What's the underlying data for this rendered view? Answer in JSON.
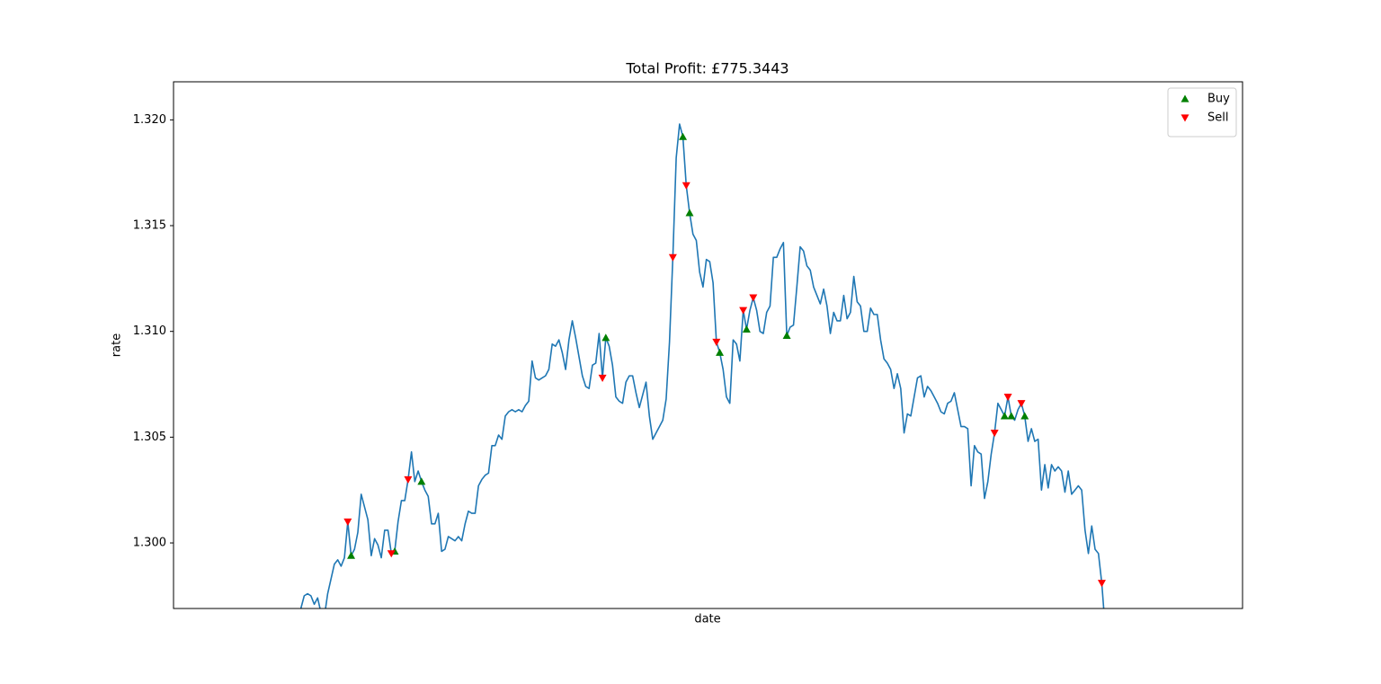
{
  "chart_data": {
    "type": "line",
    "title": "Total Profit: £775.3443",
    "x_label": "date",
    "y_label": "rate",
    "xlim": [
      -38,
      281
    ],
    "ylim": [
      1.2969,
      1.3218
    ],
    "yticks": [
      {
        "value": 1.3,
        "label": "1.300"
      },
      1.305,
      {
        "value": 1.31,
        "label": "1.310"
      },
      1.315,
      {
        "value": 1.32,
        "label": "1.320"
      }
    ],
    "legend": "upper right",
    "series": [
      {
        "type": "line",
        "color": "#1f77b4",
        "values": [
          1.2969,
          1.2975,
          1.2976,
          1.2975,
          1.2971,
          1.2974,
          1.2967,
          1.2965,
          1.2976,
          1.2983,
          1.299,
          1.2992,
          1.2989,
          1.2993,
          1.301,
          1.2994,
          1.2997,
          1.3005,
          1.3023,
          1.3017,
          1.3011,
          1.2994,
          1.3002,
          1.2999,
          1.2993,
          1.3006,
          1.3006,
          1.2995,
          1.2996,
          1.301,
          1.302,
          1.302,
          1.303,
          1.3043,
          1.3029,
          1.3034,
          1.3029,
          1.3025,
          1.3022,
          1.3009,
          1.3009,
          1.3014,
          1.2996,
          1.2997,
          1.3003,
          1.3002,
          1.3001,
          1.3003,
          1.3001,
          1.3009,
          1.3015,
          1.3014,
          1.3014,
          1.3027,
          1.303,
          1.3032,
          1.3033,
          1.3046,
          1.3046,
          1.3051,
          1.3049,
          1.306,
          1.3062,
          1.3063,
          1.3062,
          1.3063,
          1.3062,
          1.3065,
          1.3067,
          1.3086,
          1.3078,
          1.3077,
          1.3078,
          1.3079,
          1.3082,
          1.3094,
          1.3093,
          1.3096,
          1.309,
          1.3082,
          1.3096,
          1.3105,
          1.3097,
          1.3088,
          1.3079,
          1.3074,
          1.3073,
          1.3084,
          1.3085,
          1.3099,
          1.3078,
          1.3097,
          1.3093,
          1.3084,
          1.3069,
          1.3067,
          1.3066,
          1.3076,
          1.3079,
          1.3079,
          1.3071,
          1.3064,
          1.307,
          1.3076,
          1.306,
          1.3049,
          1.3052,
          1.3055,
          1.3058,
          1.3068,
          1.3095,
          1.3135,
          1.3182,
          1.3198,
          1.3192,
          1.3169,
          1.3156,
          1.3146,
          1.3143,
          1.3128,
          1.3121,
          1.3134,
          1.3133,
          1.3123,
          1.3095,
          1.309,
          1.3082,
          1.3069,
          1.3066,
          1.3096,
          1.3094,
          1.3086,
          1.311,
          1.3101,
          1.311,
          1.3116,
          1.311,
          1.31,
          1.3099,
          1.3109,
          1.3112,
          1.3135,
          1.3135,
          1.3139,
          1.3142,
          1.3098,
          1.3102,
          1.3103,
          1.3121,
          1.314,
          1.3138,
          1.3131,
          1.3129,
          1.3121,
          1.3117,
          1.3113,
          1.312,
          1.3112,
          1.3099,
          1.3109,
          1.3105,
          1.3105,
          1.3117,
          1.3106,
          1.3109,
          1.3126,
          1.3114,
          1.3112,
          1.31,
          1.31,
          1.3111,
          1.3108,
          1.3108,
          1.3096,
          1.3087,
          1.3085,
          1.3082,
          1.3073,
          1.308,
          1.3073,
          1.3052,
          1.3061,
          1.306,
          1.3069,
          1.3078,
          1.3079,
          1.3069,
          1.3074,
          1.3072,
          1.3069,
          1.3066,
          1.3062,
          1.3061,
          1.3066,
          1.3067,
          1.3071,
          1.3063,
          1.3055,
          1.3055,
          1.3054,
          1.3027,
          1.3046,
          1.3043,
          1.3042,
          1.3021,
          1.3029,
          1.3042,
          1.3052,
          1.3066,
          1.3063,
          1.306,
          1.3069,
          1.306,
          1.3058,
          1.3063,
          1.3066,
          1.306,
          1.3048,
          1.3054,
          1.3048,
          1.3049,
          1.3025,
          1.3037,
          1.3026,
          1.3037,
          1.3034,
          1.3036,
          1.3034,
          1.3024,
          1.3034,
          1.3023,
          1.3025,
          1.3027,
          1.3025,
          1.3006,
          1.2995,
          1.3008,
          1.2997,
          1.2995,
          1.2981,
          1.296
        ]
      },
      {
        "type": "scatter",
        "name": "Buy",
        "color": "green",
        "marker": "up",
        "x": [
          15,
          28,
          36,
          91,
          114,
          116,
          125,
          133,
          145,
          210,
          212,
          216
        ],
        "values": [
          1.2994,
          1.2996,
          1.3029,
          1.3097,
          1.3192,
          1.3156,
          1.309,
          1.3101,
          1.3098,
          1.306,
          1.306,
          1.306
        ]
      },
      {
        "type": "scatter",
        "name": "Sell",
        "color": "red",
        "marker": "down",
        "x": [
          14,
          27,
          32,
          90,
          111,
          115,
          124,
          132,
          135,
          207,
          211,
          215,
          239
        ],
        "values": [
          1.301,
          1.2995,
          1.303,
          1.3078,
          1.3135,
          1.3169,
          1.3095,
          1.311,
          1.3116,
          1.3052,
          1.3069,
          1.3066,
          1.2981
        ]
      }
    ]
  }
}
